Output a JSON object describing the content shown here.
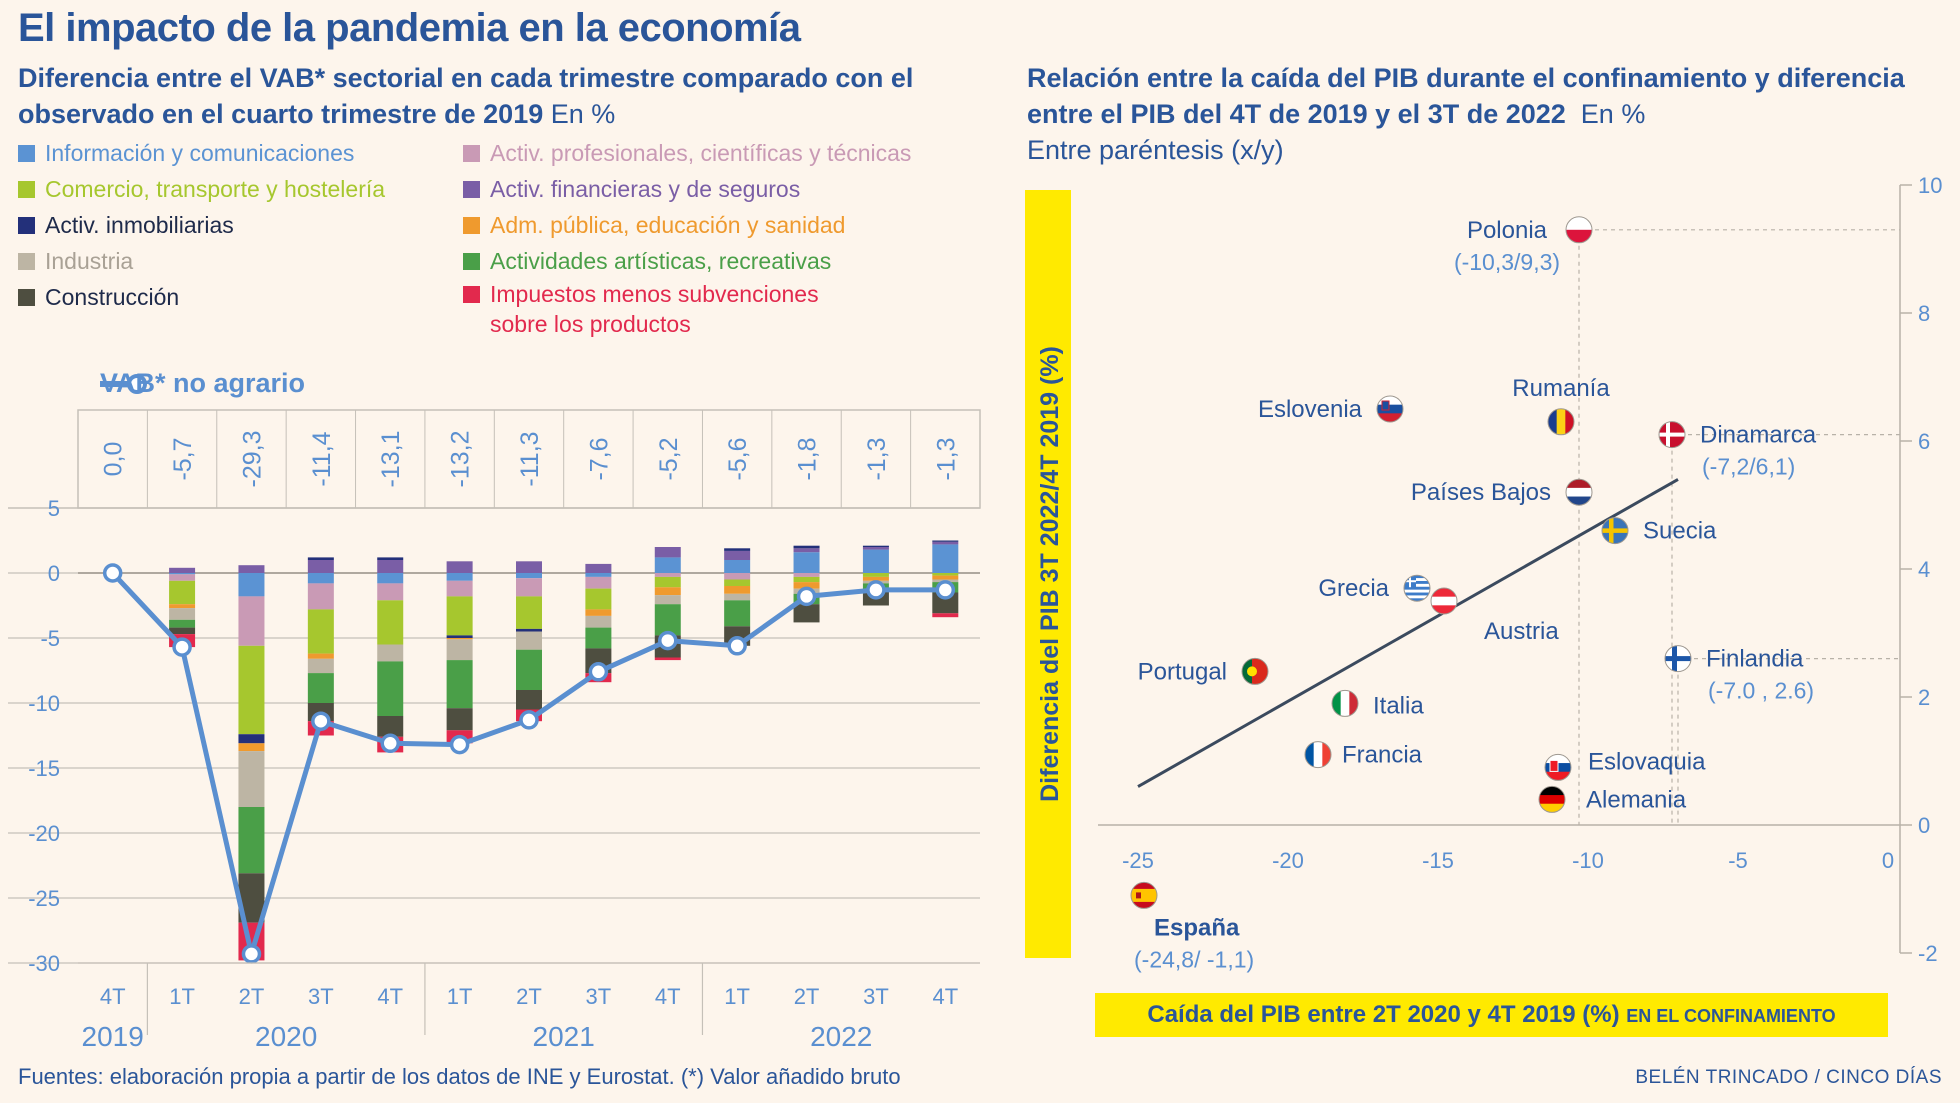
{
  "title": "El impacto de la pandemia en la economía",
  "left": {
    "subtitle": "Diferencia entre el VAB* sectorial en cada trimestre comparado con el observado en el cuarto trimestre de 2019",
    "unit": "En %",
    "vab_label": "VAB* no agrario"
  },
  "right": {
    "subtitle": "Relación entre la caída del PIB durante el confinamiento y diferencia entre el PIB del 4T de 2019 y el 3T de 2022",
    "unit": "En %",
    "paren": "Entre paréntesis (x/y)",
    "ylabel": "Diferencia del PIB 3T 2022/4T 2019 (%)",
    "xlabel": "Caída del PIB entre 2T 2020 y 4T 2019 (%)",
    "xlabel_small": "EN EL CONFINAMIENTO"
  },
  "colors": {
    "title": "#2a5599",
    "vab_line": "#5a8fd0",
    "trend": "#3b4a5e",
    "highlight": "#ffea00"
  },
  "source": "Fuentes: elaboración propia a partir de los datos de INE y Eurostat.",
  "source_note": "(*) Valor añadido bruto",
  "credit": "BELÉN TRINCADO / CINCO DÍAS",
  "chart_data": [
    {
      "type": "bar",
      "stacked": true,
      "title": "Diferencia entre el VAB* sectorial en cada trimestre comparado con el observado en el cuarto trimestre de 2019",
      "ylabel": "En %",
      "ylim": [
        -30,
        5
      ],
      "yticks": [
        5,
        0,
        -5,
        -10,
        -15,
        -20,
        -25,
        -30
      ],
      "categories": [
        "4T",
        "1T",
        "2T",
        "3T",
        "4T",
        "1T",
        "2T",
        "3T",
        "4T",
        "1T",
        "2T",
        "3T",
        "4T"
      ],
      "years": [
        {
          "label": "2019",
          "start": 0,
          "end": 0
        },
        {
          "label": "2020",
          "start": 1,
          "end": 4
        },
        {
          "label": "2021",
          "start": 5,
          "end": 8
        },
        {
          "label": "2022",
          "start": 9,
          "end": 12
        }
      ],
      "series": [
        {
          "name": "Información y comunicaciones",
          "color": "#5b93d3",
          "values": [
            0,
            -0.1,
            -1.8,
            -0.8,
            -0.8,
            -0.6,
            -0.4,
            -0.3,
            1.2,
            1.0,
            1.6,
            1.8,
            2.2
          ]
        },
        {
          "name": "Activ. profesionales, científicas y técnicas",
          "color": "#c99ab5",
          "values": [
            0,
            -0.5,
            -3.8,
            -2.0,
            -1.3,
            -1.2,
            -1.4,
            -0.9,
            -0.3,
            -0.5,
            -0.3,
            0,
            0
          ]
        },
        {
          "name": "Comercio, transporte y hostelería",
          "color": "#a6c72e",
          "values": [
            0,
            -1.8,
            -6.8,
            -3.4,
            -3.4,
            -3.0,
            -2.5,
            -1.6,
            -0.8,
            -0.5,
            -0.4,
            -0.3,
            -0.2
          ]
        },
        {
          "name": "Activ. financieras y de seguros",
          "color": "#7a5ea6",
          "values": [
            0,
            0.4,
            0.6,
            1.0,
            1.0,
            0.9,
            0.9,
            0.7,
            0.8,
            0.7,
            0.3,
            0.2,
            0.2
          ]
        },
        {
          "name": "Activ. inmobiliarias",
          "color": "#23307a",
          "values": [
            0,
            0,
            -0.7,
            0.2,
            0.2,
            -0.2,
            -0.2,
            0,
            0,
            0.2,
            0.2,
            0.1,
            0.1
          ]
        },
        {
          "name": "Adm. pública, educación y sanidad",
          "color": "#ef9a2e",
          "values": [
            0,
            -0.3,
            -0.6,
            -0.4,
            0,
            -0.1,
            0,
            -0.5,
            -0.6,
            -0.6,
            -0.5,
            -0.3,
            -0.3
          ]
        },
        {
          "name": "Industria",
          "color": "#bdb5a4",
          "values": [
            0,
            -0.9,
            -4.3,
            -1.1,
            -1.3,
            -1.6,
            -1.4,
            -0.9,
            -0.7,
            -0.5,
            -0.4,
            -0.2,
            -0.2
          ]
        },
        {
          "name": "Actividades artísticas, recreativas",
          "color": "#4a9f48",
          "values": [
            0,
            -0.6,
            -5.1,
            -2.3,
            -4.2,
            -3.7,
            -3.1,
            -1.6,
            -2.4,
            -2.0,
            -0.8,
            -0.6,
            -0.8
          ]
        },
        {
          "name": "Construcción",
          "color": "#4e4e40",
          "values": [
            0,
            -0.5,
            -3.8,
            -1.4,
            -1.6,
            -1.7,
            -1.5,
            -1.9,
            -1.7,
            -1.5,
            -1.4,
            -1.1,
            -1.6
          ]
        },
        {
          "name": "Impuestos menos subvenciones sobre los productos",
          "color": "#e2294d",
          "values": [
            0,
            -1.0,
            -2.9,
            -1.1,
            -1.2,
            -1.0,
            -0.9,
            -0.7,
            -0.2,
            0,
            0,
            0,
            -0.3
          ]
        }
      ],
      "vab_no_agrario": {
        "name": "VAB* no agrario",
        "values": [
          0.0,
          -5.7,
          -29.3,
          -11.4,
          -13.1,
          -13.2,
          -11.3,
          -7.6,
          -5.2,
          -5.6,
          -1.8,
          -1.3,
          -1.3
        ],
        "labels": [
          "0,0",
          "-5,7",
          "-29,3",
          "-11,4",
          "-13,1",
          "-13,2",
          "-11,3",
          "-7,6",
          "-5,2",
          "-5,6",
          "-1,8",
          "-1,3",
          "-1,3"
        ]
      }
    },
    {
      "type": "scatter",
      "title": "Relación entre la caída del PIB durante el confinamiento y diferencia entre el PIB del 4T de 2019 y el 3T de 2022",
      "xlabel": "Caída del PIB entre 2T 2020 y 4T 2019 (%)",
      "ylabel": "Diferencia del PIB 3T 2022/4T 2019 (%)",
      "xlim": [
        -26.5,
        0
      ],
      "ylim": [
        -2,
        10
      ],
      "xticks": [
        -25,
        -20,
        -15,
        -10,
        -5,
        0
      ],
      "yticks": [
        10,
        8,
        6,
        4,
        2,
        0,
        -2
      ],
      "trendline": {
        "x": [
          -25,
          -7
        ],
        "y": [
          0.6,
          5.4
        ]
      },
      "points": [
        {
          "name": "Polonia",
          "x": -10.3,
          "y": 9.3,
          "annotation": "(-10,3/9,3)",
          "flag": "poland"
        },
        {
          "name": "Eslovenia",
          "x": -16.6,
          "y": 6.5,
          "flag": "slovenia"
        },
        {
          "name": "Rumanía",
          "x": -10.9,
          "y": 6.3,
          "flag": "romania"
        },
        {
          "name": "Dinamarca",
          "x": -7.2,
          "y": 6.1,
          "annotation": "(-7,2/6,1)",
          "flag": "denmark"
        },
        {
          "name": "Países Bajos",
          "x": -10.3,
          "y": 5.2,
          "flag": "netherlands"
        },
        {
          "name": "Suecia",
          "x": -9.1,
          "y": 4.6,
          "flag": "sweden"
        },
        {
          "name": "Grecia",
          "x": -15.7,
          "y": 3.7,
          "flag": "greece"
        },
        {
          "name": "Austria",
          "x": -14.8,
          "y": 3.5,
          "flag": "austria"
        },
        {
          "name": "Finlandia",
          "x": -7.0,
          "y": 2.6,
          "annotation": "(-7.0 , 2.6)",
          "flag": "finland"
        },
        {
          "name": "Portugal",
          "x": -21.1,
          "y": 2.4,
          "flag": "portugal"
        },
        {
          "name": "Italia",
          "x": -18.1,
          "y": 1.9,
          "flag": "italy"
        },
        {
          "name": "Francia",
          "x": -19.0,
          "y": 1.1,
          "flag": "france"
        },
        {
          "name": "Eslovaquia",
          "x": -11.0,
          "y": 0.9,
          "flag": "slovakia"
        },
        {
          "name": "Alemania",
          "x": -11.2,
          "y": 0.4,
          "flag": "germany"
        },
        {
          "name": "España",
          "x": -24.8,
          "y": -1.1,
          "annotation": "(-24,8/ -1,1)",
          "flag": "spain"
        }
      ]
    }
  ]
}
